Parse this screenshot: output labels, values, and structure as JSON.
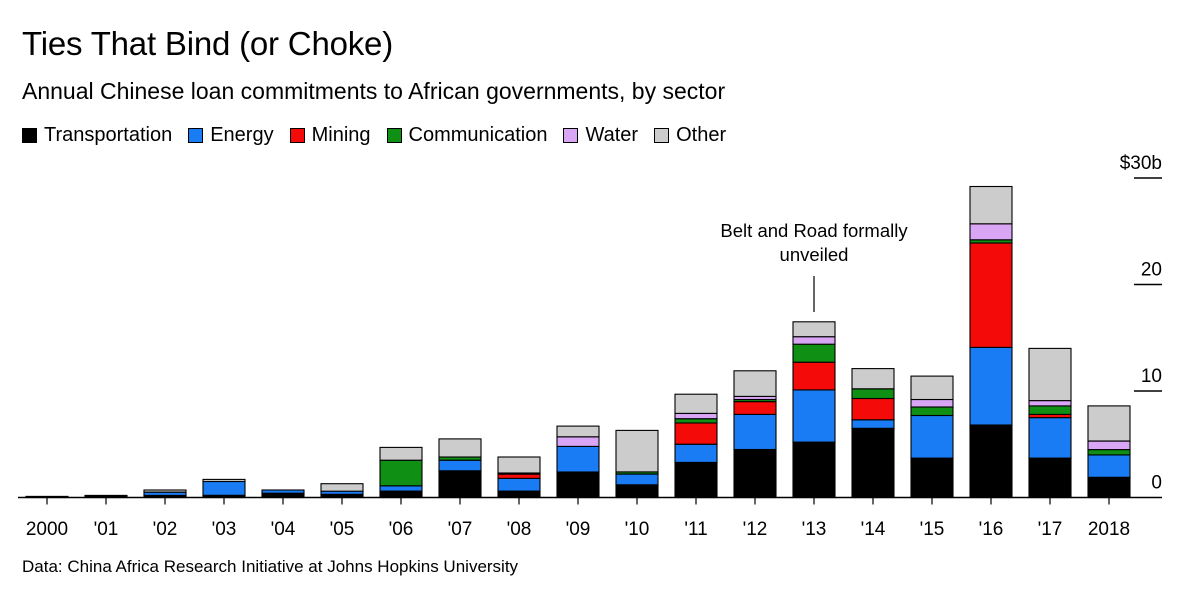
{
  "colors": {
    "Transportation": "#000000",
    "Energy": "#1a7cf5",
    "Mining": "#f50a0a",
    "Communication": "#0f8f14",
    "Water": "#d9a6f5",
    "Other": "#cccccc"
  },
  "chart_data": {
    "type": "bar",
    "stacked": true,
    "title": "Ties That Bind (or Choke)",
    "subtitle": "Annual Chinese loan commitments to African governments, by sector",
    "source": "Data: China Africa Research Initiative at Johns Hopkins University",
    "categories": [
      "2000",
      "'01",
      "'02",
      "'03",
      "'04",
      "'05",
      "'06",
      "'07",
      "'08",
      "'09",
      "'10",
      "'11",
      "'12",
      "'13",
      "'14",
      "'15",
      "'16",
      "'17",
      "2018"
    ],
    "series": [
      {
        "name": "Transportation",
        "values": [
          0.1,
          0.2,
          0.2,
          0.2,
          0.4,
          0.3,
          0.6,
          2.5,
          0.6,
          2.4,
          1.2,
          3.3,
          4.5,
          5.2,
          6.5,
          3.7,
          6.8,
          3.7,
          1.9
        ]
      },
      {
        "name": "Energy",
        "values": [
          0.0,
          0.0,
          0.3,
          1.3,
          0.3,
          0.3,
          0.5,
          1.0,
          1.2,
          2.4,
          1.0,
          1.7,
          3.3,
          4.9,
          0.8,
          4.0,
          7.3,
          3.8,
          2.1
        ]
      },
      {
        "name": "Mining",
        "values": [
          0.0,
          0.0,
          0.0,
          0.0,
          0.0,
          0.0,
          0.0,
          0.0,
          0.4,
          0.0,
          0.0,
          2.0,
          1.2,
          2.6,
          2.0,
          0.0,
          9.8,
          0.3,
          0.0
        ]
      },
      {
        "name": "Communication",
        "values": [
          0.0,
          0.0,
          0.0,
          0.0,
          0.0,
          0.0,
          2.4,
          0.3,
          0.1,
          0.0,
          0.2,
          0.4,
          0.2,
          1.7,
          0.9,
          0.8,
          0.3,
          0.8,
          0.5
        ]
      },
      {
        "name": "Water",
        "values": [
          0.0,
          0.0,
          0.0,
          0.0,
          0.0,
          0.0,
          0.0,
          0.0,
          0.0,
          0.9,
          0.0,
          0.5,
          0.3,
          0.7,
          0.0,
          0.7,
          1.5,
          0.5,
          0.8
        ]
      },
      {
        "name": "Other",
        "values": [
          0.0,
          0.0,
          0.2,
          0.2,
          0.0,
          0.7,
          1.2,
          1.7,
          1.5,
          1.0,
          3.9,
          1.8,
          2.4,
          1.4,
          1.9,
          2.2,
          3.5,
          4.9,
          3.3
        ]
      }
    ],
    "y_ticks": [
      {
        "value": 0,
        "label": "0"
      },
      {
        "value": 10,
        "label": "10"
      },
      {
        "value": 20,
        "label": "20"
      },
      {
        "value": 30,
        "label": "$30b"
      }
    ],
    "ylim": [
      0,
      30
    ],
    "annotation": {
      "category": "'13",
      "text_lines": [
        "Belt and Road formally",
        "unveiled"
      ]
    },
    "legend": "top-left",
    "grid": false
  }
}
